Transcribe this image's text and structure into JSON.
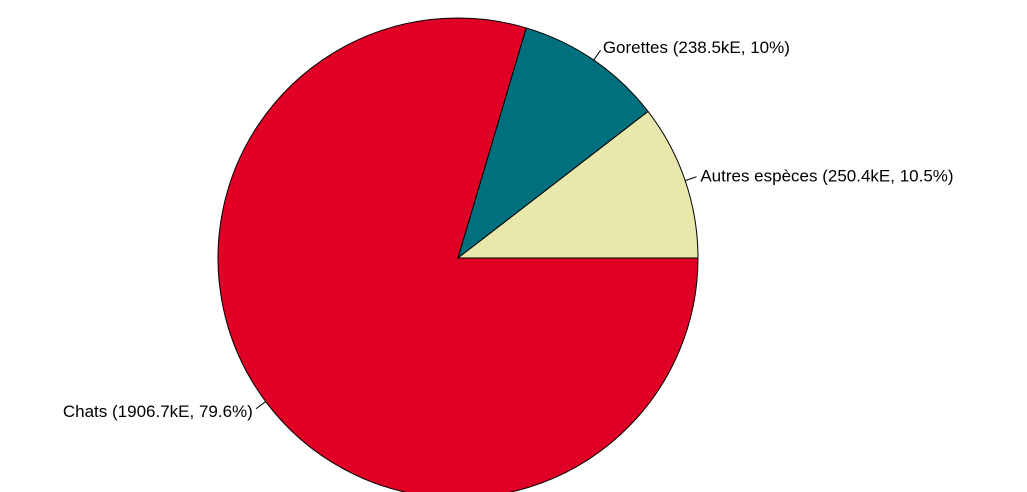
{
  "chart_data": {
    "type": "pie",
    "slices": [
      {
        "label": "Chats (1906.7kE, 79.6%)",
        "value": 1906.7,
        "percent": 79.6,
        "color": "#E00025"
      },
      {
        "label": "Gorettes (238.5kE, 10%)",
        "value": 238.5,
        "percent": 10.0,
        "color": "#00707F"
      },
      {
        "label": "Autres espèces (250.4kE, 10.5%)",
        "value": 250.4,
        "percent": 10.5,
        "color": "#E8E8AD"
      }
    ],
    "start_angle_deg": 0,
    "direction": "clockwise",
    "outline_color": "#000000"
  }
}
